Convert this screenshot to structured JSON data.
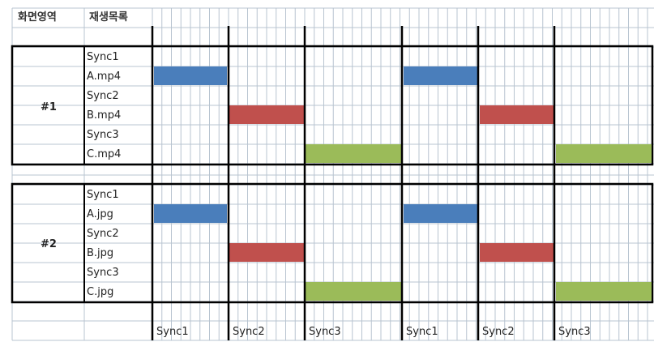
{
  "header": {
    "area_label": "화면영역",
    "playlist_label": "재생목록"
  },
  "groups": [
    {
      "label": "#1",
      "rows": [
        "Sync1",
        "A.mp4",
        "Sync2",
        "B.mp4",
        "Sync3",
        "C.mp4"
      ]
    },
    {
      "label": "#2",
      "rows": [
        "Sync1",
        "A.jpg",
        "Sync2",
        "B.jpg",
        "Sync3",
        "C.jpg"
      ]
    }
  ],
  "timeline_labels": [
    "Sync1",
    "Sync2",
    "Sync3",
    "Sync1",
    "Sync2",
    "Sync3"
  ],
  "colors": {
    "a_bar": "#4a7ebb",
    "b_bar": "#c0504d",
    "c_bar": "#9bbb59",
    "grid": "#b8c4d0",
    "line": "#000000"
  }
}
